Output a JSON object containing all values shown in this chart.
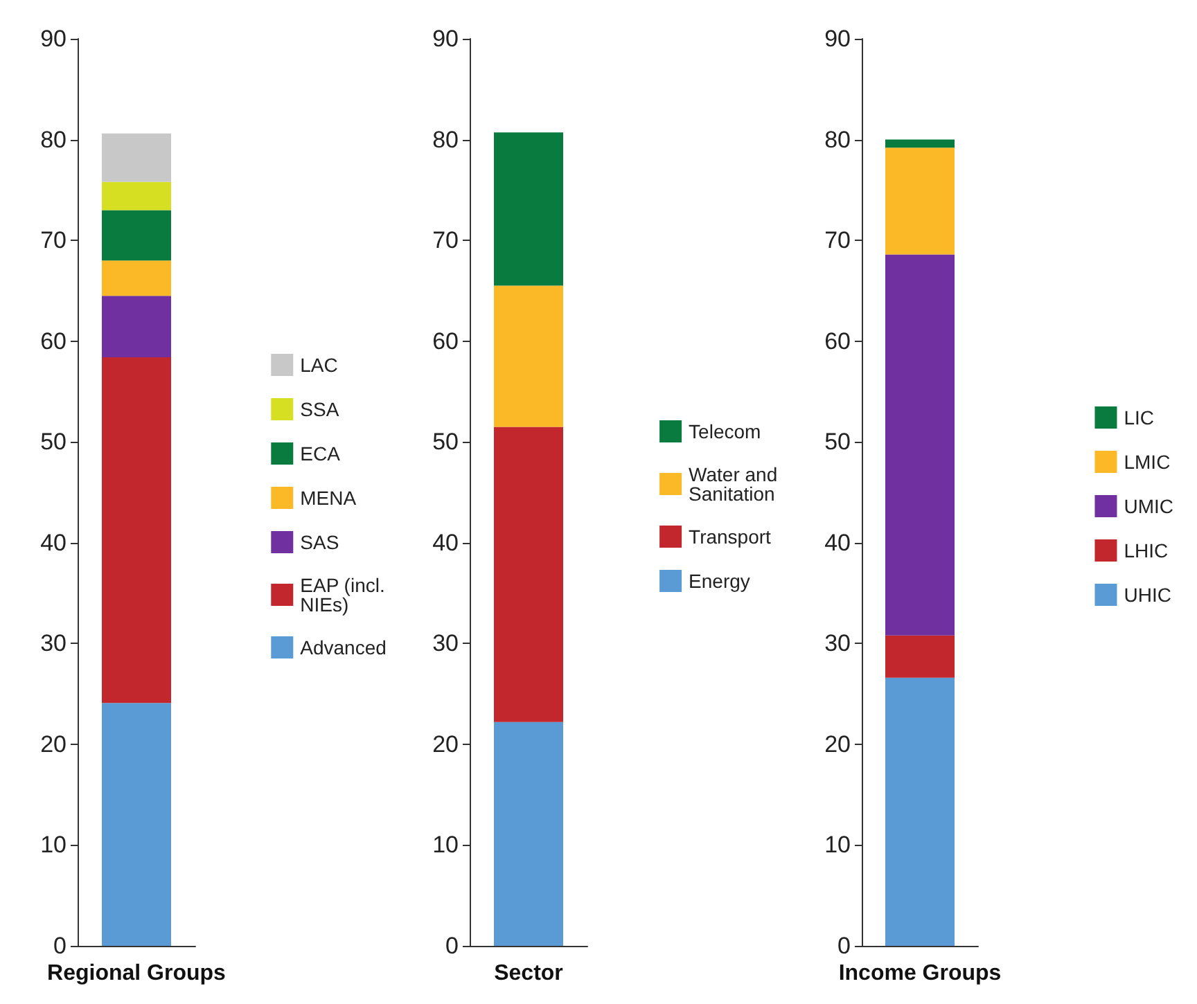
{
  "chart_data": [
    {
      "type": "bar",
      "stacked": true,
      "categories": [
        "Regional Groups"
      ],
      "ylim": [
        0,
        90
      ],
      "yticks": [
        0,
        10,
        20,
        30,
        40,
        50,
        60,
        70,
        80,
        90
      ],
      "grid": false,
      "legend": "right",
      "series": [
        {
          "name": "Advanced",
          "color": "#5b9bd5",
          "values": [
            24.1
          ]
        },
        {
          "name": "EAP (incl. NIEs)",
          "color": "#c1272d",
          "values": [
            34.3
          ]
        },
        {
          "name": "SAS",
          "color": "#7030a0",
          "values": [
            6.1
          ]
        },
        {
          "name": "MENA",
          "color": "#fbb827",
          "values": [
            3.5
          ]
        },
        {
          "name": "ECA",
          "color": "#0a7b3e",
          "values": [
            5.0
          ]
        },
        {
          "name": "SSA",
          "color": "#d7df23",
          "values": [
            2.8
          ]
        },
        {
          "name": "LAC",
          "color": "#c8c8c8",
          "values": [
            4.8
          ]
        }
      ]
    },
    {
      "type": "bar",
      "stacked": true,
      "categories": [
        "Sector"
      ],
      "ylim": [
        0,
        90
      ],
      "yticks": [
        0,
        10,
        20,
        30,
        40,
        50,
        60,
        70,
        80,
        90
      ],
      "grid": false,
      "legend": "right",
      "series": [
        {
          "name": "Energy",
          "color": "#5b9bd5",
          "values": [
            22.2
          ]
        },
        {
          "name": "Transport",
          "color": "#c1272d",
          "values": [
            29.3
          ]
        },
        {
          "name": "Water and Sanitation",
          "color": "#fbb827",
          "values": [
            14.0
          ]
        },
        {
          "name": "Telecom",
          "color": "#0a7b3e",
          "values": [
            15.2
          ]
        }
      ]
    },
    {
      "type": "bar",
      "stacked": true,
      "categories": [
        "Income Groups"
      ],
      "ylim": [
        0,
        90
      ],
      "yticks": [
        0,
        10,
        20,
        30,
        40,
        50,
        60,
        70,
        80,
        90
      ],
      "grid": false,
      "legend": "right",
      "series": [
        {
          "name": "UHIC",
          "color": "#5b9bd5",
          "values": [
            26.6
          ]
        },
        {
          "name": "LHIC",
          "color": "#c1272d",
          "values": [
            4.2
          ]
        },
        {
          "name": "UMIC",
          "color": "#7030a0",
          "values": [
            37.8
          ]
        },
        {
          "name": "LMIC",
          "color": "#fbb827",
          "values": [
            10.6
          ]
        },
        {
          "name": "LIC",
          "color": "#0a7b3e",
          "values": [
            0.8
          ]
        }
      ]
    }
  ]
}
